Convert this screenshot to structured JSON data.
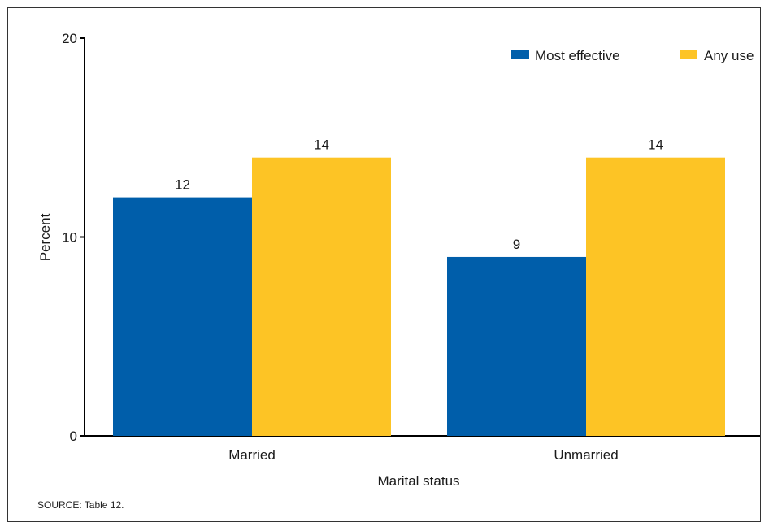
{
  "chart_data": {
    "type": "bar",
    "categories": [
      "Married",
      "Unmarried"
    ],
    "series": [
      {
        "name": "Most effective",
        "color": "#005eaa",
        "values": [
          12,
          9
        ]
      },
      {
        "name": "Any use",
        "color": "#fdc425",
        "values": [
          14,
          14
        ]
      }
    ],
    "data_labels": [
      [
        "12",
        "9"
      ],
      [
        "14",
        "14"
      ]
    ],
    "xlabel": "Marital status",
    "ylabel": "Percent",
    "ylim": [
      0,
      20
    ],
    "yticks": [
      0,
      10,
      20
    ],
    "grid": false,
    "legend_position": "top-right"
  },
  "source_note": "SOURCE: Table 12."
}
